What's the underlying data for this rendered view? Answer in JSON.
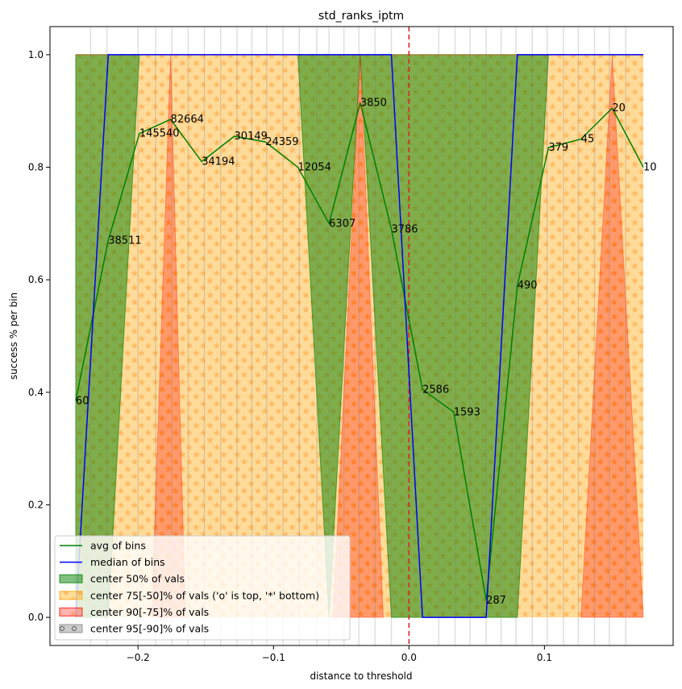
{
  "chart_data": {
    "type": "line",
    "title": "std_ranks_iptm",
    "xlabel": "distance to threshold",
    "ylabel": "success % per bin",
    "xlim": [
      -0.265,
      0.195
    ],
    "ylim": [
      -0.05,
      1.05
    ],
    "x_ticks": [
      -0.2,
      -0.1,
      0.0,
      0.1
    ],
    "x_tick_labels": [
      "−0.2",
      "−0.1",
      "0.0",
      "0.1"
    ],
    "y_ticks": [
      0.0,
      0.2,
      0.4,
      0.6,
      0.8,
      1.0
    ],
    "y_tick_labels": [
      "0.0",
      "0.2",
      "0.4",
      "0.6",
      "0.8",
      "1.0"
    ],
    "threshold_x": 0.0,
    "bin_lines": [
      -0.235,
      -0.223,
      -0.2,
      -0.187,
      -0.175,
      -0.163,
      -0.151,
      -0.139,
      -0.127,
      -0.116,
      -0.105,
      -0.093,
      -0.081,
      -0.068,
      -0.059,
      -0.048,
      -0.037,
      -0.025,
      -0.013,
      0.022,
      0.034,
      0.045,
      0.057,
      0.068,
      0.079,
      0.091,
      0.102,
      0.114,
      0.125,
      0.137,
      0.148,
      0.16
    ],
    "series": [
      {
        "name": "avg of bins",
        "color": "#008000",
        "x": [
          -0.246,
          -0.222,
          -0.199,
          -0.176,
          -0.153,
          -0.129,
          -0.106,
          -0.082,
          -0.059,
          -0.036,
          -0.013,
          0.01,
          0.033,
          0.057,
          0.08,
          0.103,
          0.127,
          0.15,
          0.173
        ],
        "y": [
          0.385,
          0.67,
          0.86,
          0.885,
          0.81,
          0.855,
          0.845,
          0.8,
          0.7,
          0.915,
          0.69,
          0.405,
          0.365,
          0.03,
          0.59,
          0.835,
          0.85,
          0.905,
          0.8
        ]
      },
      {
        "name": "median of bins",
        "color": "#0000ff",
        "x": [
          -0.246,
          -0.222,
          -0.013,
          0.01,
          0.057,
          0.08,
          0.173
        ],
        "y": [
          0.0,
          1.0,
          1.0,
          0.0,
          0.0,
          1.0,
          1.0
        ]
      }
    ],
    "bin_counts": [
      "60",
      "38511",
      "145540",
      "82664",
      "34194",
      "30149",
      "24359",
      "12054",
      "6307",
      "3850",
      "3786",
      "2586",
      "1593",
      "287",
      "490",
      "379",
      "45",
      "20",
      "10"
    ],
    "bands": [
      {
        "name": "center 50% of vals",
        "color": "#008000"
      },
      {
        "name": "center 75[-50]% of vals ('o' is top, '*' bottom)",
        "color": "#ffa500"
      },
      {
        "name": "center 90[-75]% of vals",
        "color": "#ff0000"
      },
      {
        "name": "center 95[-90]% of vals",
        "color": "#808080"
      }
    ],
    "green_band_lower": [
      [
        -0.246,
        0.0
      ],
      [
        -0.222,
        0.0
      ],
      [
        -0.199,
        1.0
      ],
      [
        -0.082,
        1.0
      ],
      [
        -0.059,
        0.0
      ],
      [
        -0.036,
        1.0
      ],
      [
        -0.013,
        0.0
      ],
      [
        0.057,
        0.0
      ],
      [
        0.08,
        0.0
      ],
      [
        0.103,
        1.0
      ],
      [
        0.173,
        1.0
      ]
    ],
    "orange_band_lower": [
      [
        -0.246,
        1.0
      ],
      [
        -0.222,
        1.0
      ],
      [
        -0.21,
        0.0
      ],
      [
        -0.199,
        0.0
      ],
      [
        -0.176,
        1.0
      ],
      [
        -0.153,
        1.0
      ],
      [
        -0.082,
        1.0
      ],
      [
        -0.059,
        0.0
      ],
      [
        -0.036,
        0.0
      ],
      [
        -0.013,
        1.0
      ],
      [
        0.033,
        1.0
      ],
      [
        0.057,
        0.0
      ],
      [
        0.08,
        0.0
      ],
      [
        0.103,
        1.0
      ],
      [
        0.173,
        1.0
      ]
    ],
    "red_triangles": [
      [
        [
          -0.19,
          0.0
        ],
        [
          -0.176,
          1.0
        ],
        [
          -0.165,
          0.0
        ]
      ],
      [
        [
          -0.056,
          0.0
        ],
        [
          -0.036,
          1.0
        ],
        [
          -0.019,
          0.0
        ]
      ],
      [
        [
          0.127,
          0.0
        ],
        [
          0.15,
          1.0
        ],
        [
          0.173,
          0.0
        ]
      ]
    ],
    "legend_position": "lower-left",
    "grid": false
  }
}
